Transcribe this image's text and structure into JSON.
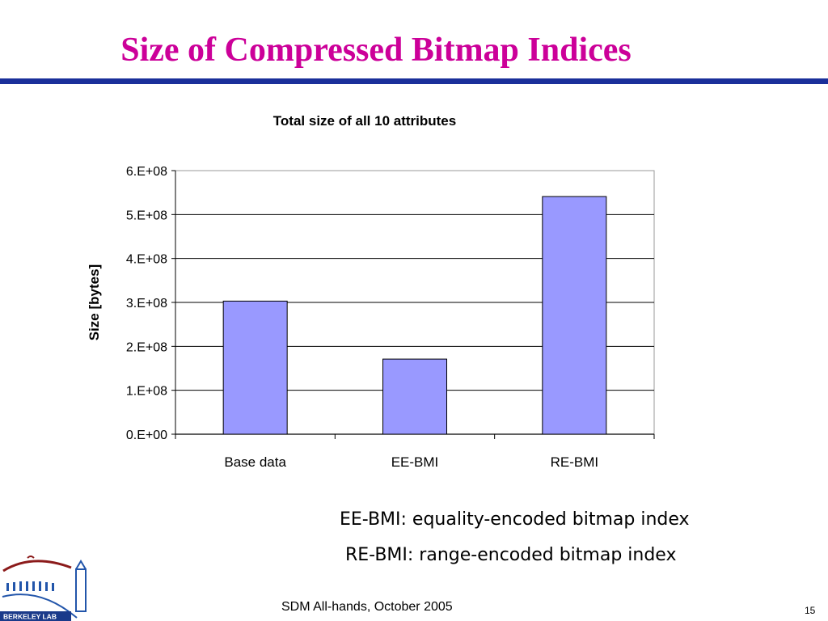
{
  "slide": {
    "title": "Size of Compressed Bitmap Indices",
    "definitions": [
      "EE-BMI: equality-encoded bitmap index",
      "RE-BMI: range-encoded bitmap index"
    ],
    "footer": "SDM All-hands, October 2005",
    "slide_number": "15",
    "logo_text": "BERKELEY LAB",
    "colors": {
      "title": "#cc0099",
      "rule": "#1a2f9a",
      "bar": "#9999ff"
    }
  },
  "chart_data": {
    "type": "bar",
    "title": "Total size of all 10 attributes",
    "xlabel": "",
    "ylabel": "Size [bytes]",
    "categories": [
      "Base data",
      "EE-BMI",
      "RE-BMI"
    ],
    "values": [
      303000000,
      171000000,
      541000000
    ],
    "ylim": [
      0,
      600000000
    ],
    "yticks": [
      "0.E+00",
      "1.E+08",
      "2.E+08",
      "3.E+08",
      "4.E+08",
      "5.E+08",
      "6.E+08"
    ],
    "grid": true,
    "legend": "none"
  }
}
